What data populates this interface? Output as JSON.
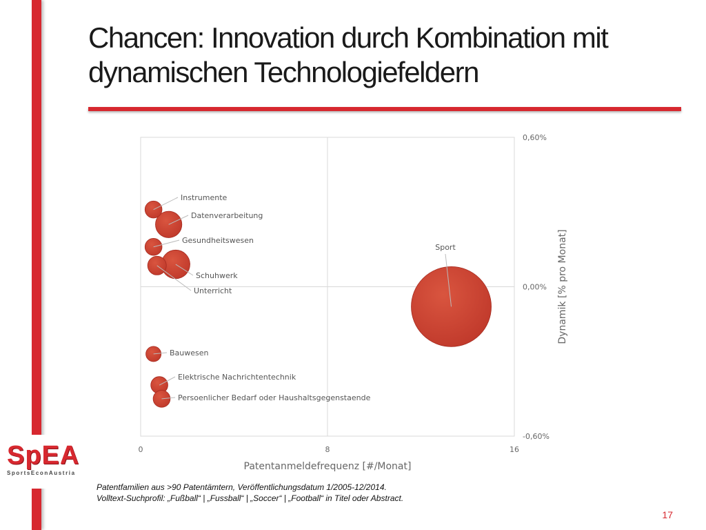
{
  "slide": {
    "title": "Chancen: Innovation durch Kombination mit dynamischen Technologiefeldern",
    "logo_main": "SpEA",
    "logo_sub": "SportsEconAustria",
    "footnote_line1": "Patentfamilien aus >90 Patentämtern, Veröffentlichungsdatum 1/2005-12/2014.",
    "footnote_line2": "Volltext-Suchprofil: „Fußball“ | „Fussball“ | „Soccer“ | „Football“ in Titel oder Abstract.",
    "page_number": "17",
    "accent_color": "#d7282f"
  },
  "chart_data": {
    "type": "scatter",
    "subtype": "bubble",
    "title": "",
    "xlabel": "Patentanmeldefrequenz [#/Monat]",
    "ylabel": "Dynamik [% pro Monat]",
    "xlim": [
      0,
      16
    ],
    "ylim": [
      -0.6,
      0.6
    ],
    "x_ticks": [
      0,
      8,
      16
    ],
    "x_tick_labels": [
      "0",
      "8",
      "16"
    ],
    "y_ticks": [
      0.6,
      0.0,
      -0.6
    ],
    "y_tick_labels": [
      "0,60%",
      "0,00%",
      "-0,60%"
    ],
    "y_axis_side": "right",
    "grid": true,
    "bubble_color": "#c0392b",
    "points": [
      {
        "label": "Instrumente",
        "x": 0.55,
        "y": 0.31,
        "size": 0.5
      },
      {
        "label": "Datenverarbeitung",
        "x": 1.2,
        "y": 0.25,
        "size": 1.2
      },
      {
        "label": "Gesundheitswesen",
        "x": 0.55,
        "y": 0.16,
        "size": 0.5
      },
      {
        "label": "Schuhwerk",
        "x": 1.5,
        "y": 0.09,
        "size": 1.4
      },
      {
        "label": "Unterricht",
        "x": 0.7,
        "y": 0.085,
        "size": 0.6
      },
      {
        "label": "Sport",
        "x": 13.3,
        "y": -0.08,
        "size": 11.0
      },
      {
        "label": "Bauwesen",
        "x": 0.55,
        "y": -0.27,
        "size": 0.4
      },
      {
        "label": "Elektrische Nachrichtentechnik",
        "x": 0.8,
        "y": -0.395,
        "size": 0.5
      },
      {
        "label": "Persoenlicher Bedarf oder Haushaltsgegenstaende",
        "x": 0.9,
        "y": -0.45,
        "size": 0.5
      }
    ]
  }
}
